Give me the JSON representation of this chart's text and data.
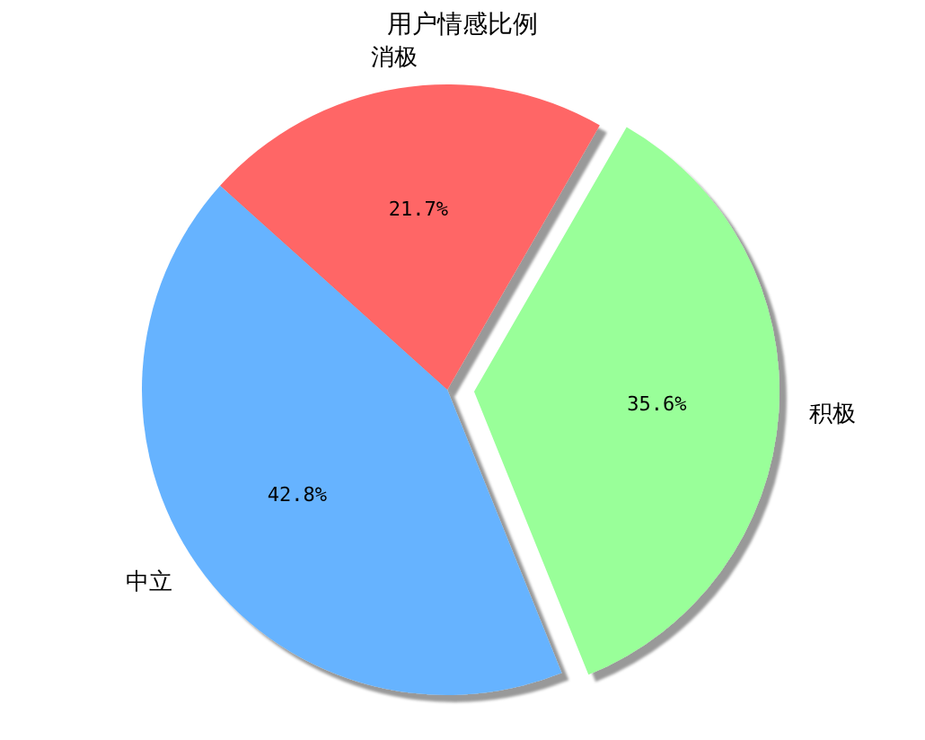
{
  "chart_data": {
    "type": "pie",
    "title": "用户情感比例",
    "categories": [
      "积极",
      "消极",
      "中立"
    ],
    "values": [
      35.6,
      21.7,
      42.8
    ],
    "value_labels": [
      "35.6%",
      "21.7%",
      "42.8%"
    ],
    "colors": [
      "#99ff99",
      "#ff6666",
      "#66b3ff"
    ]
  }
}
